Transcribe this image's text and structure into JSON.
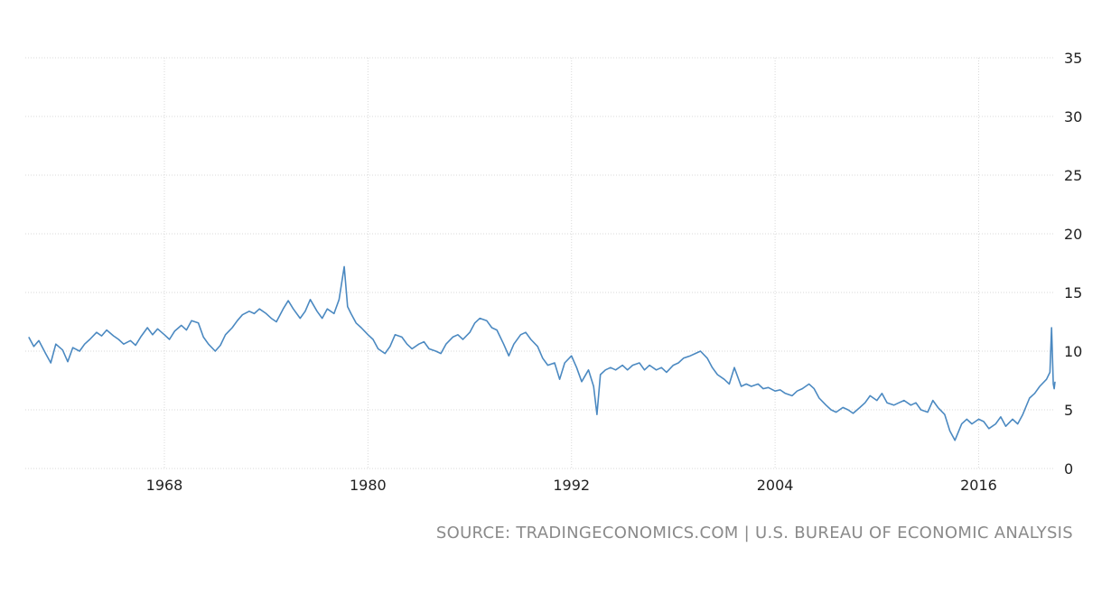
{
  "source": "SOURCE: TRADINGECONOMICS.COM | U.S. BUREAU OF ECONOMIC ANALYSIS",
  "chart_data": {
    "type": "line",
    "title": "",
    "xlabel": "",
    "ylabel": "",
    "x_ticks": [
      "1968",
      "1980",
      "1992",
      "2004",
      "2016"
    ],
    "y_ticks": [
      "0",
      "5",
      "10",
      "15",
      "20",
      "25",
      "30",
      "35"
    ],
    "xlim": [
      1960,
      2020.5
    ],
    "ylim": [
      0,
      35
    ],
    "grid": true,
    "y_axis_side": "right",
    "line_color": "#4b89c1",
    "series": [
      {
        "values": [
          [
            1960.0,
            11.2
          ],
          [
            1960.3,
            10.4
          ],
          [
            1960.6,
            10.9
          ],
          [
            1961.0,
            9.8
          ],
          [
            1961.3,
            9.0
          ],
          [
            1961.6,
            10.6
          ],
          [
            1962.0,
            10.1
          ],
          [
            1962.3,
            9.1
          ],
          [
            1962.6,
            10.3
          ],
          [
            1963.0,
            10.0
          ],
          [
            1963.3,
            10.6
          ],
          [
            1963.6,
            11.0
          ],
          [
            1964.0,
            11.6
          ],
          [
            1964.3,
            11.3
          ],
          [
            1964.6,
            11.8
          ],
          [
            1965.0,
            11.3
          ],
          [
            1965.3,
            11.0
          ],
          [
            1965.6,
            10.6
          ],
          [
            1966.0,
            10.9
          ],
          [
            1966.3,
            10.5
          ],
          [
            1966.6,
            11.2
          ],
          [
            1967.0,
            12.0
          ],
          [
            1967.3,
            11.4
          ],
          [
            1967.6,
            11.9
          ],
          [
            1968.0,
            11.4
          ],
          [
            1968.3,
            11.0
          ],
          [
            1968.6,
            11.7
          ],
          [
            1969.0,
            12.2
          ],
          [
            1969.3,
            11.8
          ],
          [
            1969.6,
            12.6
          ],
          [
            1970.0,
            12.4
          ],
          [
            1970.3,
            11.2
          ],
          [
            1970.6,
            10.6
          ],
          [
            1971.0,
            10.0
          ],
          [
            1971.3,
            10.5
          ],
          [
            1971.6,
            11.4
          ],
          [
            1972.0,
            12.0
          ],
          [
            1972.3,
            12.6
          ],
          [
            1972.6,
            13.1
          ],
          [
            1973.0,
            13.4
          ],
          [
            1973.3,
            13.2
          ],
          [
            1973.6,
            13.6
          ],
          [
            1974.0,
            13.2
          ],
          [
            1974.3,
            12.8
          ],
          [
            1974.6,
            12.5
          ],
          [
            1975.0,
            13.6
          ],
          [
            1975.3,
            14.3
          ],
          [
            1975.6,
            13.6
          ],
          [
            1976.0,
            12.8
          ],
          [
            1976.3,
            13.4
          ],
          [
            1976.6,
            14.4
          ],
          [
            1977.0,
            13.4
          ],
          [
            1977.3,
            12.8
          ],
          [
            1977.6,
            13.6
          ],
          [
            1978.0,
            13.2
          ],
          [
            1978.3,
            14.4
          ],
          [
            1978.6,
            17.2
          ],
          [
            1978.8,
            13.8
          ],
          [
            1979.0,
            13.2
          ],
          [
            1979.3,
            12.4
          ],
          [
            1979.6,
            12.0
          ],
          [
            1980.0,
            11.4
          ],
          [
            1980.3,
            11.0
          ],
          [
            1980.6,
            10.2
          ],
          [
            1981.0,
            9.8
          ],
          [
            1981.3,
            10.4
          ],
          [
            1981.6,
            11.4
          ],
          [
            1982.0,
            11.2
          ],
          [
            1982.3,
            10.6
          ],
          [
            1982.6,
            10.2
          ],
          [
            1983.0,
            10.6
          ],
          [
            1983.3,
            10.8
          ],
          [
            1983.6,
            10.2
          ],
          [
            1984.0,
            10.0
          ],
          [
            1984.3,
            9.8
          ],
          [
            1984.6,
            10.6
          ],
          [
            1985.0,
            11.2
          ],
          [
            1985.3,
            11.4
          ],
          [
            1985.6,
            11.0
          ],
          [
            1986.0,
            11.6
          ],
          [
            1986.3,
            12.4
          ],
          [
            1986.6,
            12.8
          ],
          [
            1987.0,
            12.6
          ],
          [
            1987.3,
            12.0
          ],
          [
            1987.6,
            11.8
          ],
          [
            1988.0,
            10.6
          ],
          [
            1988.3,
            9.6
          ],
          [
            1988.6,
            10.6
          ],
          [
            1989.0,
            11.4
          ],
          [
            1989.3,
            11.6
          ],
          [
            1989.6,
            11.0
          ],
          [
            1990.0,
            10.4
          ],
          [
            1990.3,
            9.4
          ],
          [
            1990.6,
            8.8
          ],
          [
            1991.0,
            9.0
          ],
          [
            1991.3,
            7.6
          ],
          [
            1991.6,
            9.0
          ],
          [
            1992.0,
            9.6
          ],
          [
            1992.3,
            8.6
          ],
          [
            1992.6,
            7.4
          ],
          [
            1993.0,
            8.4
          ],
          [
            1993.3,
            7.0
          ],
          [
            1993.5,
            4.6
          ],
          [
            1993.7,
            8.0
          ],
          [
            1994.0,
            8.4
          ],
          [
            1994.3,
            8.6
          ],
          [
            1994.6,
            8.4
          ],
          [
            1995.0,
            8.8
          ],
          [
            1995.3,
            8.4
          ],
          [
            1995.6,
            8.8
          ],
          [
            1996.0,
            9.0
          ],
          [
            1996.3,
            8.4
          ],
          [
            1996.6,
            8.8
          ],
          [
            1997.0,
            8.4
          ],
          [
            1997.3,
            8.6
          ],
          [
            1997.6,
            8.2
          ],
          [
            1998.0,
            8.8
          ],
          [
            1998.3,
            9.0
          ],
          [
            1998.6,
            9.4
          ],
          [
            1999.0,
            9.6
          ],
          [
            1999.3,
            9.8
          ],
          [
            1999.6,
            10.0
          ],
          [
            2000.0,
            9.4
          ],
          [
            2000.3,
            8.6
          ],
          [
            2000.6,
            8.0
          ],
          [
            2001.0,
            7.6
          ],
          [
            2001.3,
            7.2
          ],
          [
            2001.6,
            8.6
          ],
          [
            2002.0,
            7.0
          ],
          [
            2002.3,
            7.2
          ],
          [
            2002.6,
            7.0
          ],
          [
            2003.0,
            7.2
          ],
          [
            2003.3,
            6.8
          ],
          [
            2003.6,
            6.9
          ],
          [
            2004.0,
            6.6
          ],
          [
            2004.3,
            6.7
          ],
          [
            2004.6,
            6.4
          ],
          [
            2005.0,
            6.2
          ],
          [
            2005.3,
            6.6
          ],
          [
            2005.6,
            6.8
          ],
          [
            2006.0,
            7.2
          ],
          [
            2006.3,
            6.8
          ],
          [
            2006.6,
            6.0
          ],
          [
            2007.0,
            5.4
          ],
          [
            2007.3,
            5.0
          ],
          [
            2007.6,
            4.8
          ],
          [
            2008.0,
            5.2
          ],
          [
            2008.3,
            5.0
          ],
          [
            2008.6,
            4.7
          ],
          [
            2009.0,
            5.2
          ],
          [
            2009.3,
            5.6
          ],
          [
            2009.6,
            6.2
          ],
          [
            2010.0,
            5.8
          ],
          [
            2010.3,
            6.4
          ],
          [
            2010.6,
            5.6
          ],
          [
            2011.0,
            5.4
          ],
          [
            2011.3,
            5.6
          ],
          [
            2011.6,
            5.8
          ],
          [
            2012.0,
            5.4
          ],
          [
            2012.3,
            5.6
          ],
          [
            2012.6,
            5.0
          ],
          [
            2013.0,
            4.8
          ],
          [
            2013.3,
            5.8
          ],
          [
            2013.6,
            5.2
          ],
          [
            2014.0,
            4.6
          ],
          [
            2014.3,
            3.2
          ],
          [
            2014.6,
            2.4
          ],
          [
            2015.0,
            3.8
          ],
          [
            2015.3,
            4.2
          ],
          [
            2015.6,
            3.8
          ],
          [
            2016.0,
            4.2
          ],
          [
            2016.3,
            4.0
          ],
          [
            2016.6,
            3.4
          ],
          [
            2017.0,
            3.8
          ],
          [
            2017.3,
            4.4
          ],
          [
            2017.6,
            3.6
          ],
          [
            2018.0,
            4.2
          ],
          [
            2018.3,
            3.8
          ],
          [
            2018.6,
            4.6
          ],
          [
            2019.0,
            6.0
          ],
          [
            2019.3,
            6.4
          ],
          [
            2019.6,
            7.0
          ],
          [
            2020.0,
            7.6
          ],
          [
            2020.2,
            8.2
          ],
          [
            2020.3,
            12.0
          ],
          [
            2020.4,
            7.2
          ],
          [
            2020.45,
            6.8
          ],
          [
            2020.5,
            7.4
          ]
        ]
      }
    ]
  }
}
